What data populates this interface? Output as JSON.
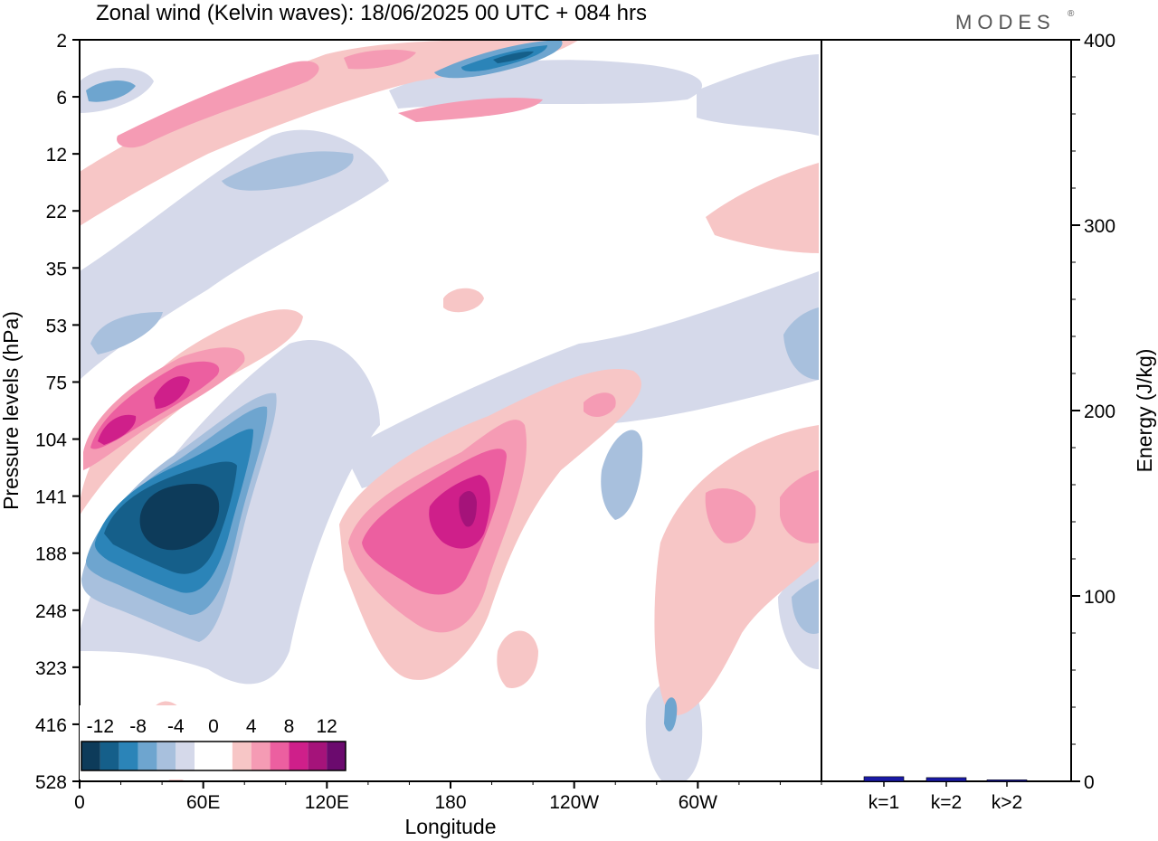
{
  "header": {
    "title": "Zonal wind (Kelvin waves):  18/06/2025  00 UTC  + 084 hrs",
    "brand": "MODES"
  },
  "colors": {
    "scale": [
      "#0d3b5a",
      "#155f8a",
      "#2b84b8",
      "#6ea5cf",
      "#a8c0dd",
      "#d5d9ea",
      "#ffffff",
      "#ffffff",
      "#f7c6c6",
      "#f59bb4",
      "#ec5fa0",
      "#cf1f8a",
      "#a5137a",
      "#6b0a6e"
    ],
    "bar": "#1a1aa6"
  },
  "chart_data": [
    {
      "type": "heatmap",
      "title": "Zonal wind (Kelvin waves):  18/06/2025  00 UTC  + 084 hrs",
      "xlabel": "Longitude",
      "ylabel": "Pressure levels (hPa)",
      "x_ticks": [
        "0",
        "60E",
        "120E",
        "180",
        "120W",
        "60W"
      ],
      "y_ticks": [
        "2",
        "6",
        "12",
        "22",
        "35",
        "53",
        "75",
        "104",
        "141",
        "188",
        "248",
        "323",
        "416",
        "528"
      ],
      "x_range_deg": [
        0,
        360
      ],
      "colorbar": {
        "labels": [
          "-12",
          "-8",
          "-4",
          "0",
          "4",
          "8",
          "12"
        ],
        "levels": [
          -14,
          -12,
          -10,
          -8,
          -6,
          -4,
          -2,
          0,
          2,
          4,
          6,
          8,
          10,
          12,
          14
        ]
      },
      "features": [
        {
          "lon": 45,
          "p": 150,
          "value": -14
        },
        {
          "lon": 35,
          "p": 165,
          "value": -12
        },
        {
          "lon": 60,
          "p": 140,
          "value": -10
        },
        {
          "lon": 80,
          "p": 125,
          "value": -8
        },
        {
          "lon": 25,
          "p": 5,
          "value": -6
        },
        {
          "lon": 195,
          "p": 3,
          "value": -8
        },
        {
          "lon": 20,
          "p": 100,
          "value": 8
        },
        {
          "lon": 40,
          "p": 80,
          "value": 8
        },
        {
          "lon": 190,
          "p": 145,
          "value": 12
        },
        {
          "lon": 170,
          "p": 165,
          "value": 8
        },
        {
          "lon": 140,
          "p": 175,
          "value": 6
        },
        {
          "lon": 310,
          "p": 145,
          "value": 4
        },
        {
          "lon": 345,
          "p": 145,
          "value": 4
        },
        {
          "lon": 130,
          "p": 3,
          "value": 6
        }
      ]
    },
    {
      "type": "bar",
      "categories": [
        "k=1",
        "k=2",
        "k>2"
      ],
      "values": [
        2.5,
        2,
        0.8
      ],
      "ylabel": "Energy (J/kg)",
      "ylim": [
        0,
        400
      ],
      "y_ticks": [
        "0",
        "100",
        "200",
        "300",
        "400"
      ]
    }
  ]
}
